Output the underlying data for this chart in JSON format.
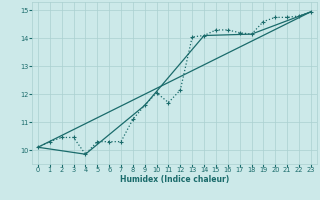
{
  "xlabel": "Humidex (Indice chaleur)",
  "background_color": "#cce9e9",
  "grid_color": "#aad0d0",
  "line_color": "#1a6b6b",
  "xlim": [
    -0.5,
    23.5
  ],
  "ylim": [
    9.5,
    15.3
  ],
  "yticks": [
    10,
    11,
    12,
    13,
    14,
    15
  ],
  "xticks": [
    0,
    1,
    2,
    3,
    4,
    5,
    6,
    7,
    8,
    9,
    10,
    11,
    12,
    13,
    14,
    15,
    16,
    17,
    18,
    19,
    20,
    21,
    22,
    23
  ],
  "line1_x": [
    0,
    1,
    2,
    3,
    4,
    5,
    6,
    7,
    8,
    9,
    10,
    11,
    12,
    13,
    14,
    15,
    16,
    17,
    18,
    19,
    20,
    21,
    22,
    23
  ],
  "line1_y": [
    10.1,
    10.3,
    10.45,
    10.45,
    9.85,
    10.3,
    10.3,
    10.3,
    11.1,
    11.6,
    12.05,
    11.7,
    12.15,
    14.05,
    14.1,
    14.3,
    14.3,
    14.2,
    14.15,
    14.6,
    14.75,
    14.75,
    14.8,
    14.95
  ],
  "line2_x": [
    0,
    23
  ],
  "line2_y": [
    10.1,
    14.95
  ],
  "line3_x": [
    0,
    4,
    9,
    14,
    18,
    23
  ],
  "line3_y": [
    10.1,
    9.85,
    11.6,
    14.1,
    14.15,
    14.95
  ]
}
